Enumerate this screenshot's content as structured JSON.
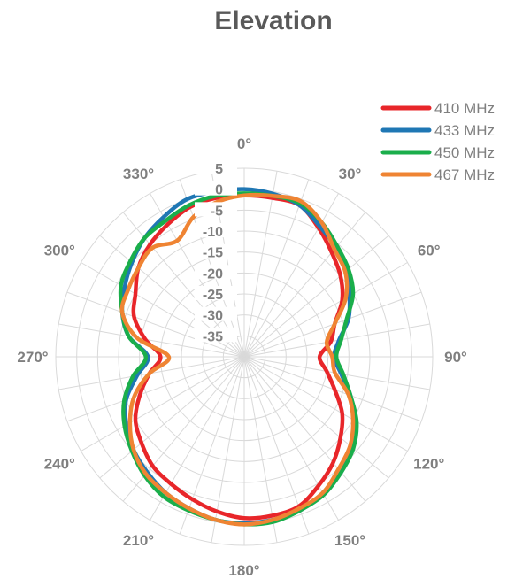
{
  "chart_data": {
    "type": "polar-line",
    "title": "Elevation",
    "angle_labels": [
      "0°",
      "30°",
      "60°",
      "90°",
      "120°",
      "150°",
      "180°",
      "210°",
      "240°",
      "270°",
      "300°",
      "330°"
    ],
    "angle_label_values": [
      0,
      30,
      60,
      90,
      120,
      150,
      180,
      210,
      240,
      270,
      300,
      330
    ],
    "angle_grid_step_deg": 10,
    "radial_ticks": [
      5,
      0,
      -5,
      -10,
      -15,
      -20,
      -25,
      -30,
      -35
    ],
    "radial_tick_labels": [
      "5",
      "0",
      "-5",
      "-10",
      "-15",
      "-20",
      "-25",
      "-30",
      "-35"
    ],
    "rlim": [
      -40,
      5
    ],
    "rlabel_angle_deg": 0,
    "legend_position": "top-right",
    "series": [
      {
        "name": "410 MHz",
        "color": "#e8262a",
        "angles": [
          0,
          10,
          20,
          30,
          40,
          50,
          60,
          70,
          80,
          90,
          100,
          110,
          120,
          130,
          140,
          150,
          160,
          170,
          180,
          190,
          200,
          210,
          220,
          230,
          240,
          250,
          260,
          270,
          280,
          290,
          300,
          310,
          320,
          330,
          340,
          350
        ],
        "values": [
          -1.5,
          -1.5,
          -1.5,
          -4.5,
          -7.5,
          -10,
          -13,
          -17,
          -19,
          -22,
          -20,
          -17,
          -13,
          -10,
          -7,
          -4.5,
          -2,
          -1.5,
          -1.5,
          -2.5,
          -3.8,
          -5,
          -6,
          -8,
          -10,
          -13.5,
          -17,
          -20,
          -16,
          -12,
          -10,
          -7,
          -5,
          -3.5,
          -2,
          -1.5
        ]
      },
      {
        "name": "433 MHz",
        "color": "#1f77b4",
        "angles": [
          0,
          10,
          20,
          30,
          40,
          50,
          60,
          70,
          80,
          90,
          100,
          110,
          120,
          130,
          140,
          150,
          160,
          170,
          180,
          190,
          200,
          210,
          220,
          230,
          240,
          250,
          260,
          270,
          280,
          290,
          300,
          310,
          320,
          330,
          340,
          350
        ],
        "values": [
          0,
          -0.5,
          -1.5,
          -4,
          -6,
          -8,
          -11,
          -13.5,
          -17,
          -18.5,
          -16.5,
          -13,
          -9.5,
          -6.5,
          -4,
          -2.5,
          -1,
          -0.5,
          -0.3,
          -0.5,
          -1.5,
          -2.5,
          -4,
          -5.5,
          -7.5,
          -10,
          -14,
          -17,
          -12,
          -9,
          -7,
          -5,
          -3,
          -1.5,
          0,
          0
        ]
      },
      {
        "name": "450 MHz",
        "color": "#1aae4b",
        "angles": [
          0,
          10,
          20,
          30,
          40,
          50,
          60,
          70,
          80,
          90,
          100,
          110,
          120,
          130,
          140,
          150,
          160,
          170,
          180,
          190,
          200,
          210,
          220,
          230,
          240,
          250,
          260,
          270,
          280,
          290,
          300,
          310,
          320,
          330,
          340,
          350
        ],
        "values": [
          -1,
          -1,
          -1,
          -3,
          -5.5,
          -7.5,
          -10,
          -14,
          -16.5,
          -18,
          -16,
          -13,
          -9,
          -6,
          -4,
          -2,
          -1,
          0,
          0,
          -0.5,
          -1,
          -1.5,
          -3,
          -5,
          -7,
          -9.5,
          -13,
          -16.5,
          -12,
          -9,
          -6,
          -4.5,
          -3,
          -2.5,
          -1.5,
          -1
        ]
      },
      {
        "name": "467 MHz",
        "color": "#ef8433",
        "angles": [
          0,
          10,
          20,
          30,
          40,
          50,
          60,
          70,
          80,
          90,
          100,
          110,
          120,
          130,
          140,
          150,
          160,
          170,
          180,
          190,
          200,
          210,
          220,
          230,
          240,
          250,
          260,
          270,
          280,
          290,
          300,
          310,
          320,
          330,
          340,
          350
        ],
        "values": [
          -1.5,
          -1,
          -0.5,
          -3,
          -6.5,
          -8.5,
          -12,
          -17,
          -20,
          -19,
          -18,
          -13.5,
          -10,
          -7,
          -5,
          -2.5,
          -1.5,
          -0.5,
          0,
          -0.5,
          -1.5,
          -2.5,
          -3.5,
          -5.5,
          -8.5,
          -12,
          -17,
          -22,
          -14,
          -9,
          -8,
          -7,
          -6,
          -8,
          -4.5,
          -2.5
        ]
      }
    ]
  }
}
